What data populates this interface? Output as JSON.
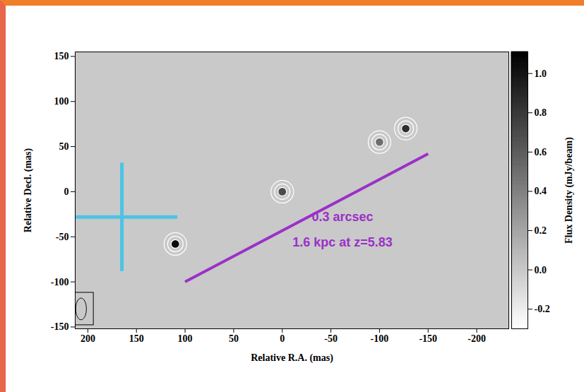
{
  "chart_data": {
    "type": "image",
    "x_label": "Relative R.A. (mas)",
    "y_label": "Relative Decl. (mas)",
    "xlim": [
      213,
      -233
    ],
    "ylim": [
      -152,
      155
    ],
    "xticks": [
      200,
      150,
      100,
      50,
      0,
      -50,
      -100,
      -150,
      -200
    ],
    "yticks": [
      -150,
      -100,
      -50,
      0,
      50,
      100,
      150
    ],
    "sources": [
      {
        "ra": 0,
        "dec": 0,
        "peak": 0.7
      },
      {
        "ra": 110,
        "dec": -58,
        "peak": 1.05
      },
      {
        "ra": -127,
        "dec": 70,
        "peak": 0.85
      },
      {
        "ra": -100,
        "dec": 55,
        "peak": 0.5
      }
    ],
    "beam": {
      "ra": 207,
      "dec": -130,
      "major": 24,
      "minor": 11,
      "box_ra": [
        215,
        194
      ],
      "box_dec": [
        -112,
        -148
      ]
    },
    "colorbar": {
      "label": "Flux Density (mJy/beam)",
      "lim": [
        -0.3,
        1.11
      ],
      "ticks": [
        {
          "value": -0.2,
          "label": "-0.2"
        },
        {
          "value": 0,
          "label": "0.0"
        },
        {
          "value": 0.2,
          "label": "0.2"
        },
        {
          "value": 0.4,
          "label": "0.4"
        },
        {
          "value": 0.6,
          "label": "0.6"
        },
        {
          "value": 0.8,
          "label": "0.8"
        },
        {
          "value": 1.0,
          "label": "1.0"
        }
      ]
    },
    "annotations": {
      "cross": {
        "ra": 165,
        "dec": -28,
        "ra_range": [
          213,
          108
        ],
        "dec_range": [
          32,
          -88
        ],
        "color": "#4cc3e6"
      },
      "scale_bar": {
        "from": [
          100,
          -100
        ],
        "to": [
          -150,
          42
        ],
        "color": "#9b30c8",
        "labels": [
          "0.3 arcsec",
          "1.6 kpc at z=5.83"
        ],
        "label_position": [
          -62,
          -30
        ]
      }
    }
  }
}
